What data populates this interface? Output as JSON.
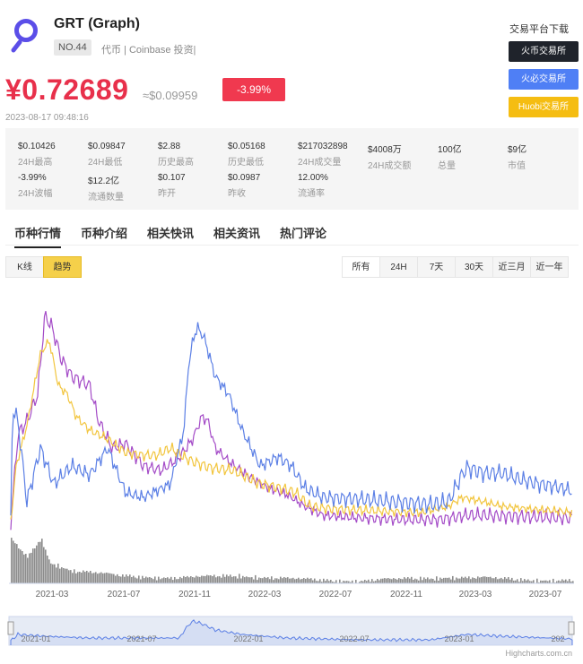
{
  "coin": {
    "name": "GRT (Graph)",
    "rank": "NO.44",
    "tags": "代币 | Coinbase 投资|",
    "logo_icon": "graph-logo-icon"
  },
  "exchanges": {
    "title": "交易平台下载",
    "items": [
      {
        "label": "火币交易所",
        "color": "#1f232b"
      },
      {
        "label": "火必交易所",
        "color": "#4f7ff5"
      },
      {
        "label": "Huobi交易所",
        "color": "#f5bd12"
      }
    ]
  },
  "price": {
    "cny": "¥0.72689",
    "usd": "≈$0.09959",
    "change": "-3.99%",
    "timestamp": "2023-08-17 09:48:16"
  },
  "stats": [
    {
      "value": "$0.10426",
      "label": "24H最高"
    },
    {
      "value": "$0.09847",
      "label": "24H最低"
    },
    {
      "value": "$2.88",
      "label": "历史最高"
    },
    {
      "value": "$0.05168",
      "label": "历史最低"
    },
    {
      "value": "$217032898",
      "label": "24H成交量"
    },
    {
      "value": "$4008万",
      "label": "24H成交额"
    },
    {
      "value": "100亿",
      "label": "总量"
    },
    {
      "value": "$9亿",
      "label": "市值"
    },
    {
      "value": "-3.99%",
      "label": "24H波幅"
    },
    {
      "value": "$12.2亿",
      "label": "流通数量"
    },
    {
      "value": "$0.107",
      "label": "昨开"
    },
    {
      "value": "$0.0987",
      "label": "昨收"
    },
    {
      "value": "12.00%",
      "label": "流通率"
    }
  ],
  "tabs": [
    "币种行情",
    "币种介绍",
    "相关快讯",
    "相关资讯",
    "热门评论"
  ],
  "chart_type_buttons": [
    "K线",
    "趋势"
  ],
  "range_buttons": [
    "所有",
    "24H",
    "7天",
    "30天",
    "近三月",
    "近一年"
  ],
  "chart_data": {
    "type": "line",
    "x_ticks": [
      "2021-03",
      "2021-07",
      "2021-11",
      "2022-03",
      "2022-07",
      "2022-11",
      "2023-03",
      "2023-07"
    ],
    "navigator_ticks": [
      "2021-01",
      "2021-07",
      "2022-01",
      "2022-07",
      "2023-01",
      "202"
    ],
    "series_colors": [
      "#5b7fe5",
      "#f2c53d",
      "#a44bc7"
    ],
    "volume_color": "#8c8c8c",
    "credit": "Highcharts.com.cn"
  }
}
